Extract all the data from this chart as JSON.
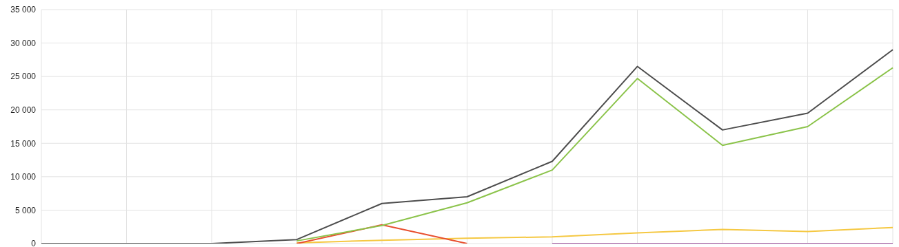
{
  "chart_data": {
    "type": "line",
    "categories": [
      null,
      null,
      null,
      null,
      null,
      null,
      null,
      null,
      null,
      null,
      null
    ],
    "series": [
      {
        "color": "#f5c842",
        "values": [
          null,
          null,
          null,
          100,
          500,
          800,
          1000,
          1600,
          2100,
          1800,
          2400
        ]
      },
      {
        "color": "#e8502f",
        "values": [
          null,
          null,
          null,
          0,
          2800,
          0,
          null,
          null,
          null,
          null,
          null
        ]
      },
      {
        "color": "#8bc34a",
        "values": [
          null,
          null,
          null,
          400,
          2700,
          6100,
          11000,
          24700,
          14700,
          17500,
          26300
        ]
      },
      {
        "color": "#4d4d4d",
        "values": [
          0,
          0,
          0,
          600,
          6000,
          7000,
          12300,
          26500,
          17000,
          19500,
          29000
        ]
      },
      {
        "color": "#9c4f9c",
        "values": [
          null,
          null,
          null,
          null,
          null,
          null,
          0,
          0,
          0,
          0,
          0
        ]
      }
    ],
    "ylim": [
      0,
      35000
    ],
    "yticks": [
      {
        "value": 0,
        "label": "0"
      },
      {
        "value": 5000,
        "label": "5 000"
      },
      {
        "value": 10000,
        "label": "10 000"
      },
      {
        "value": 15000,
        "label": "15 000"
      },
      {
        "value": 20000,
        "label": "20 000"
      },
      {
        "value": 25000,
        "label": "25 000"
      },
      {
        "value": 30000,
        "label": "30 000"
      },
      {
        "value": 35000,
        "label": "35 000"
      }
    ],
    "grid": true,
    "marker": "none",
    "line_style": "solid",
    "tick_labels": "y"
  }
}
